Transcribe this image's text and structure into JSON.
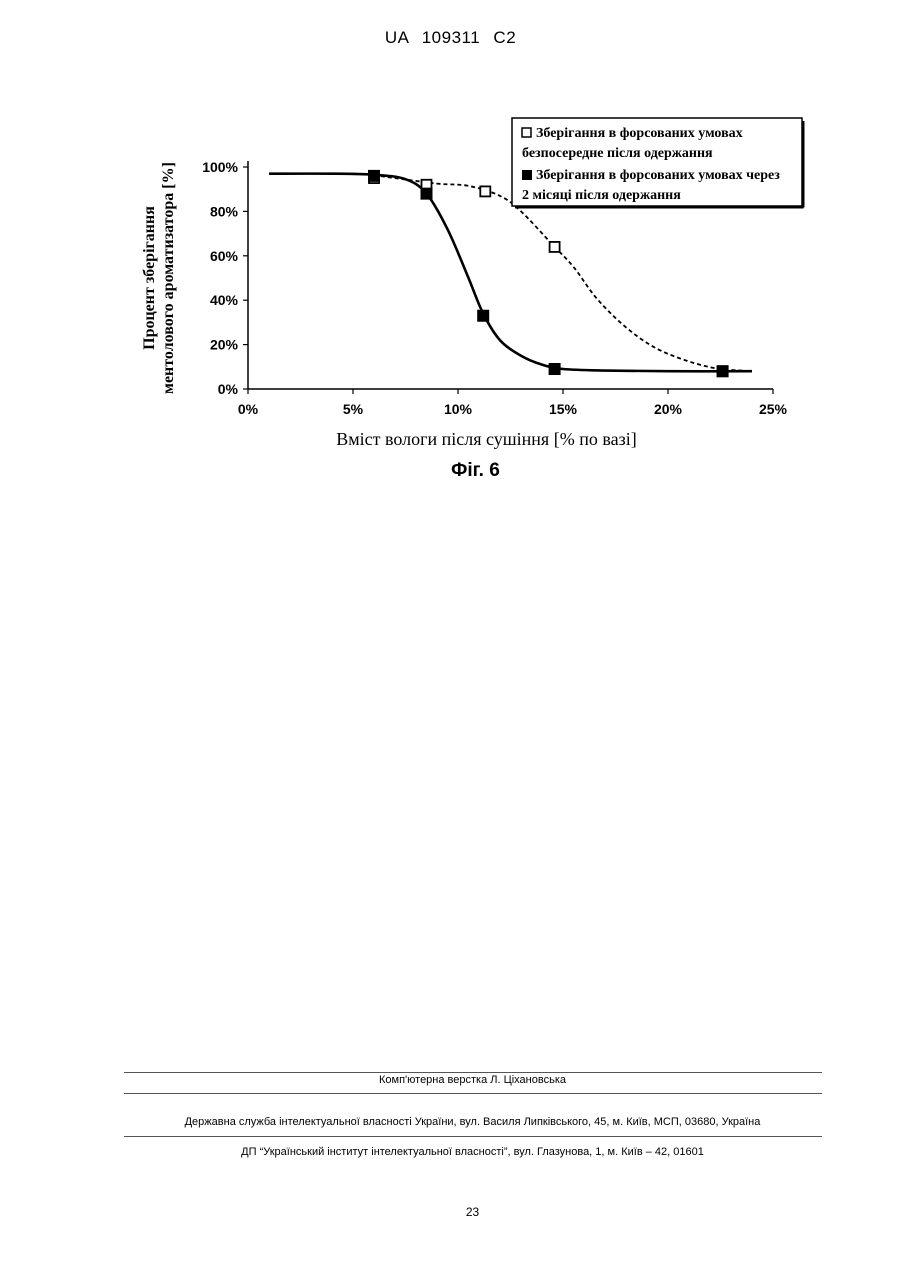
{
  "header": {
    "code": "UA   109311   C2"
  },
  "figure": {
    "caption": "Фіг. 6"
  },
  "chart_data": {
    "type": "line",
    "title": "",
    "xlabel": "Вміст вологи після сушіння [% по вазі]",
    "ylabel": [
      "Процент зберігання",
      "ментолового ароматизатора [%]"
    ],
    "xlim": [
      0,
      25
    ],
    "ylim": [
      0,
      100
    ],
    "x_ticks": [
      "0%",
      "5%",
      "10%",
      "15%",
      "20%",
      "25%"
    ],
    "y_ticks": [
      "0%",
      "20%",
      "40%",
      "60%",
      "80%",
      "100%"
    ],
    "grid": false,
    "legend_position": "top-right",
    "series": [
      {
        "name": [
          "Зберігання в форсованих умовах",
          "безпосередне після одержання"
        ],
        "marker": "hollow-square",
        "line": "dashed",
        "points": [
          [
            6,
            95
          ],
          [
            8.5,
            92
          ],
          [
            11.3,
            89
          ],
          [
            14.6,
            64
          ],
          [
            22.6,
            8
          ]
        ],
        "curve": [
          [
            1,
            97
          ],
          [
            5,
            97
          ],
          [
            7,
            95
          ],
          [
            9,
            92.5
          ],
          [
            10.5,
            91.5
          ],
          [
            12,
            87
          ],
          [
            13,
            80
          ],
          [
            14.5,
            65
          ],
          [
            15.5,
            55
          ],
          [
            16.5,
            42
          ],
          [
            17.5,
            32
          ],
          [
            18.5,
            24
          ],
          [
            19.5,
            18
          ],
          [
            20.5,
            14
          ],
          [
            21.5,
            11
          ],
          [
            22.5,
            9
          ],
          [
            24,
            8
          ]
        ]
      },
      {
        "name": [
          "Зберігання в форсованих умовах через",
          "2 місяці після одержання"
        ],
        "marker": "filled-square",
        "line": "solid",
        "points": [
          [
            6,
            96
          ],
          [
            8.5,
            88
          ],
          [
            11.2,
            33
          ],
          [
            14.6,
            9
          ],
          [
            22.6,
            8
          ]
        ],
        "curve": [
          [
            1,
            97
          ],
          [
            4,
            97
          ],
          [
            6,
            96.5
          ],
          [
            7.5,
            94.5
          ],
          [
            8.5,
            88
          ],
          [
            9.5,
            72
          ],
          [
            10.5,
            50
          ],
          [
            11.2,
            34
          ],
          [
            12,
            22
          ],
          [
            13,
            15
          ],
          [
            14,
            11
          ],
          [
            15,
            9
          ],
          [
            17,
            8.3
          ],
          [
            20,
            8
          ],
          [
            24,
            8
          ]
        ]
      }
    ]
  },
  "footer": {
    "layout": "Комп'ютерна верстка Л. Ціхановська",
    "agency": "Державна служба інтелектуальної власності України, вул. Василя Липківського, 45, м. Київ, МСП, 03680, Україна",
    "institute": "ДП “Український інститут інтелектуальної власності”, вул. Глазунова, 1, м. Київ – 42, 01601"
  },
  "page": {
    "number": "23"
  }
}
